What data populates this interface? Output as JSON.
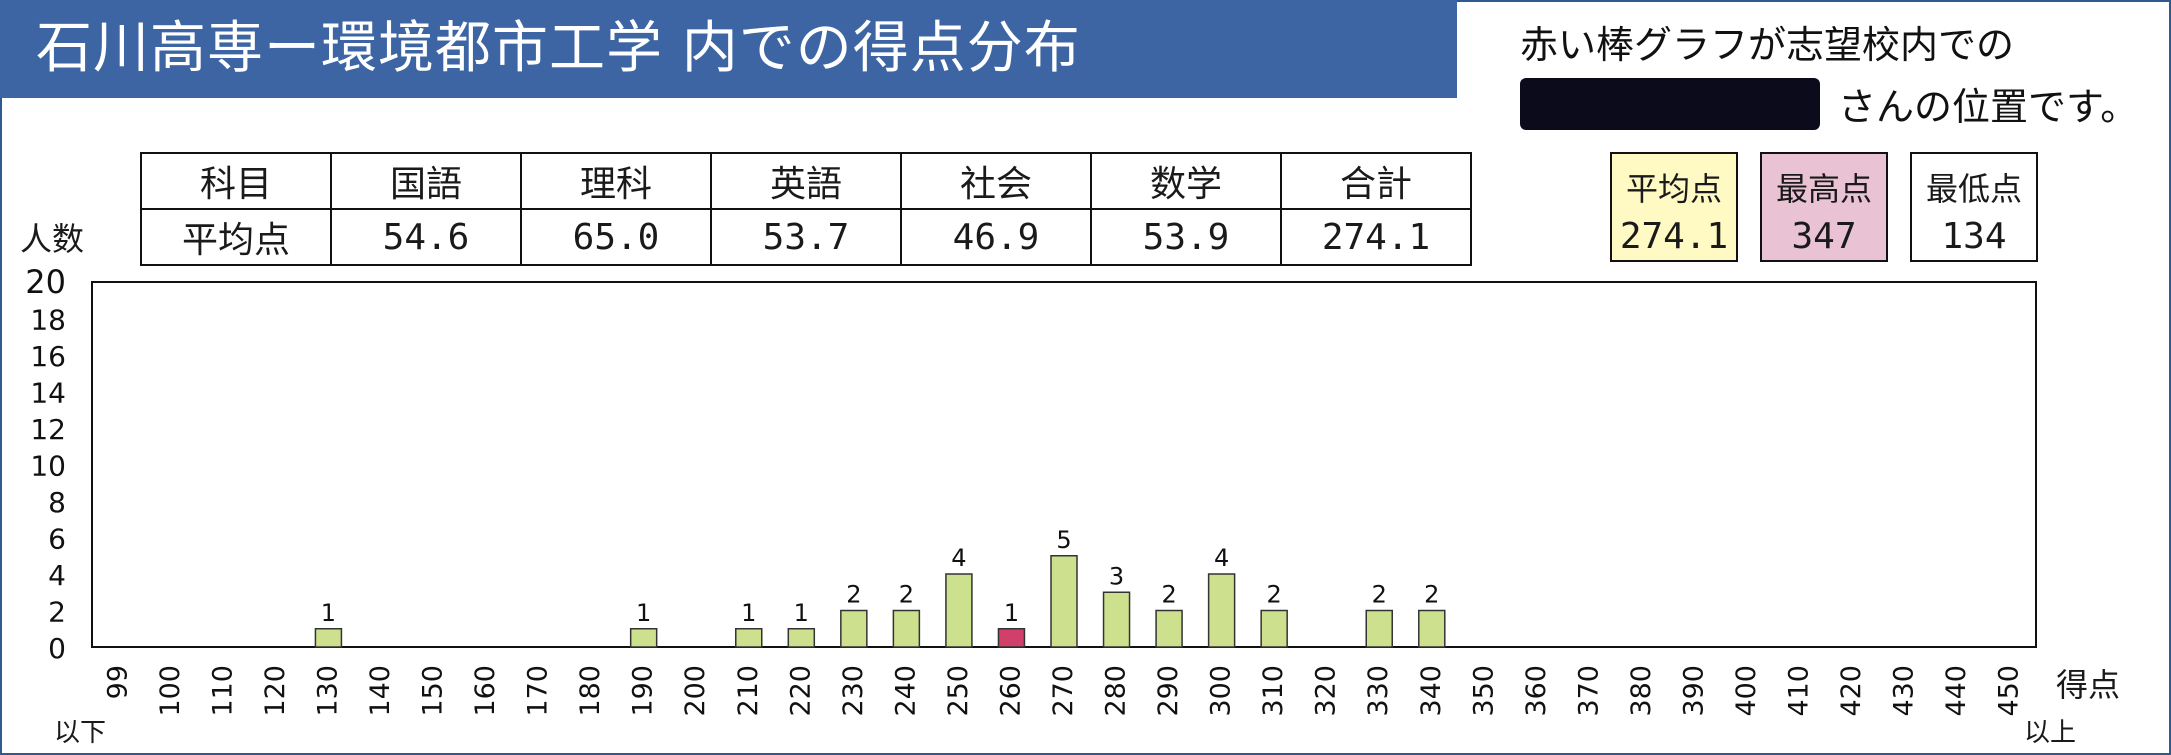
{
  "header": {
    "title": "石川高専ー環境都市工学 内での得点分布"
  },
  "note": {
    "line1": "赤い棒グラフが志望校内での",
    "line2": "さんの位置です。"
  },
  "subjects_table": {
    "header_label": "科目",
    "row_label": "平均点",
    "subjects": [
      "国語",
      "理科",
      "英語",
      "社会",
      "数学",
      "合計"
    ],
    "averages": [
      "54.6",
      "65.0",
      "53.7",
      "46.9",
      "53.9",
      "274.1"
    ]
  },
  "stats": {
    "avg_label": "平均点",
    "avg_value": "274.1",
    "max_label": "最高点",
    "max_value": "347",
    "min_label": "最低点",
    "min_value": "134"
  },
  "axis_text": {
    "y_unit": "人数",
    "x_unit": "得点",
    "below": "以下",
    "above": "以上"
  },
  "colors": {
    "title_bg": "#3d65a3",
    "bar_normal": "#cde08e",
    "bar_highlight": "#d0406a",
    "avg_box": "#fff9c4",
    "max_box": "#e9c3d3"
  },
  "chart_data": {
    "type": "bar",
    "categories": [
      "99",
      "100",
      "110",
      "120",
      "130",
      "140",
      "150",
      "160",
      "170",
      "180",
      "190",
      "200",
      "210",
      "220",
      "230",
      "240",
      "250",
      "260",
      "270",
      "280",
      "290",
      "300",
      "310",
      "320",
      "330",
      "340",
      "350",
      "360",
      "370",
      "380",
      "390",
      "400",
      "410",
      "420",
      "430",
      "440",
      "450"
    ],
    "values": [
      0,
      0,
      0,
      0,
      1,
      0,
      0,
      0,
      0,
      0,
      1,
      0,
      1,
      1,
      2,
      2,
      4,
      1,
      5,
      3,
      2,
      4,
      2,
      0,
      2,
      2,
      0,
      0,
      0,
      0,
      0,
      0,
      0,
      0,
      0,
      0,
      0
    ],
    "highlight_category": "260",
    "ylim": [
      0,
      20
    ],
    "y_ticks": [
      0,
      2,
      4,
      6,
      8,
      10,
      12,
      14,
      16,
      18,
      20
    ],
    "xlabel": "得点",
    "ylabel": "人数",
    "grid": false
  }
}
